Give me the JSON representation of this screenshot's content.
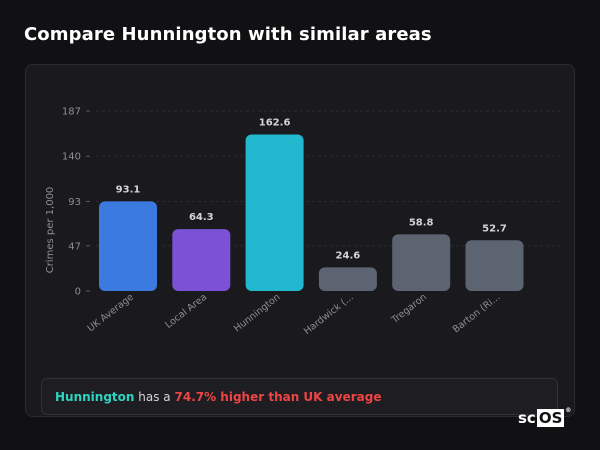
{
  "page": {
    "title": "Compare Hunnington with similar areas"
  },
  "chart_data": {
    "type": "bar",
    "ylabel": "Crimes per 1,000",
    "xlabel": "",
    "yticks": [
      0,
      47,
      93,
      140,
      187
    ],
    "ylim": [
      0,
      187
    ],
    "grid": true,
    "categories": [
      "UK Average",
      "Local Area",
      "Hunnington",
      "Hardwick (...",
      "Tregaron",
      "Barton (Ri..."
    ],
    "values": [
      93.1,
      64.3,
      162.6,
      24.6,
      58.8,
      52.7
    ],
    "value_labels": [
      "93.1",
      "64.3",
      "162.6",
      "24.6",
      "58.8",
      "52.7"
    ],
    "colors": [
      "#3b7be0",
      "#7b52d6",
      "#22b8cf",
      "#5c6472",
      "#5c6472",
      "#5c6472"
    ]
  },
  "summary": {
    "area": "Hunnington",
    "middle": "has a",
    "difference": "74.7% higher than UK average"
  },
  "logo": {
    "prefix": "sc",
    "boxed": "OS",
    "mark": "®"
  }
}
